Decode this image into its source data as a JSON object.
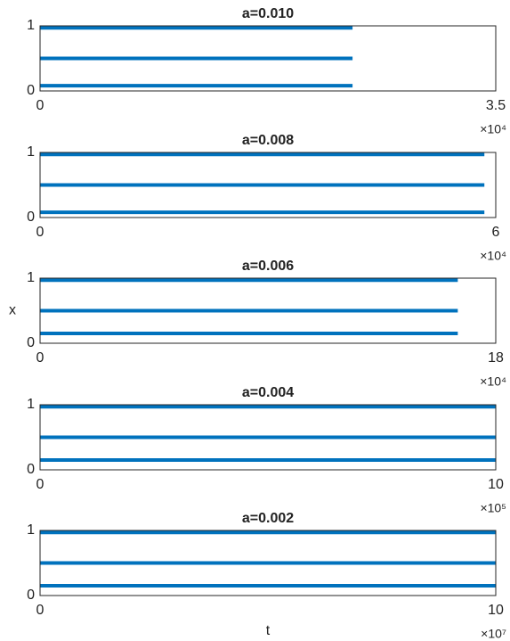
{
  "chart_data": [
    {
      "type": "line",
      "title": "a=0.010",
      "xlim": [
        0,
        3.5
      ],
      "xticks": [
        0,
        3.5
      ],
      "x_exponent": "×10⁴",
      "ylim": [
        0,
        1
      ],
      "yticks": [
        0,
        1
      ],
      "x": [
        0,
        0.6,
        1.2,
        1.8,
        2.4
      ],
      "series": [
        {
          "color": "#0072bd",
          "values": [
            0.97,
            0.97,
            0.97,
            0.97,
            0.97
          ]
        },
        {
          "color": "#0072bd",
          "values": [
            0.5,
            0.5,
            0.5,
            0.5,
            0.5
          ]
        },
        {
          "color": "#0072bd",
          "values": [
            0.08,
            0.08,
            0.08,
            0.08,
            0.08
          ]
        }
      ]
    },
    {
      "type": "line",
      "title": "a=0.008",
      "xlim": [
        0,
        6
      ],
      "xticks": [
        0,
        6
      ],
      "x_exponent": "×10⁴",
      "ylim": [
        0,
        1
      ],
      "yticks": [
        0,
        1
      ],
      "x": [
        0,
        1.5,
        3,
        4.5,
        5.85
      ],
      "series": [
        {
          "color": "#0072bd",
          "values": [
            0.97,
            0.97,
            0.97,
            0.97,
            0.97
          ]
        },
        {
          "color": "#0072bd",
          "values": [
            0.5,
            0.5,
            0.5,
            0.5,
            0.5
          ]
        },
        {
          "color": "#0072bd",
          "values": [
            0.08,
            0.08,
            0.08,
            0.08,
            0.08
          ]
        }
      ]
    },
    {
      "type": "line",
      "title": "a=0.006",
      "ylabel": "x",
      "xlim": [
        0,
        18
      ],
      "xticks": [
        0,
        18
      ],
      "x_exponent": "×10⁴",
      "ylim": [
        0,
        1
      ],
      "yticks": [
        0,
        1
      ],
      "x": [
        0,
        4,
        8,
        12,
        16.5
      ],
      "series": [
        {
          "color": "#0072bd",
          "values": [
            0.97,
            0.97,
            0.97,
            0.97,
            0.97
          ]
        },
        {
          "color": "#0072bd",
          "values": [
            0.5,
            0.5,
            0.5,
            0.5,
            0.5
          ]
        },
        {
          "color": "#0072bd",
          "values": [
            0.15,
            0.15,
            0.15,
            0.15,
            0.15
          ]
        }
      ]
    },
    {
      "type": "line",
      "title": "a=0.004",
      "xlim": [
        0,
        10
      ],
      "xticks": [
        0,
        10
      ],
      "x_exponent": "×10⁵",
      "ylim": [
        0,
        1
      ],
      "yticks": [
        0,
        1
      ],
      "x": [
        0,
        0.35,
        2.5,
        5,
        7.5,
        10
      ],
      "series": [
        {
          "color": "#0072bd",
          "values": [
            0.97,
            0.97,
            0.97,
            0.97,
            0.97,
            0.97
          ]
        },
        {
          "color": "#0072bd",
          "values": [
            0.5,
            0.5,
            0.5,
            0.5,
            0.5,
            0.5
          ]
        },
        {
          "color": "#0072bd",
          "values": [
            0.15,
            0.15,
            0.15,
            0.15,
            0.15,
            0.15
          ]
        }
      ]
    },
    {
      "type": "line",
      "title": "a=0.002",
      "xlabel": "t",
      "xlim": [
        0,
        10
      ],
      "xticks": [
        0,
        10
      ],
      "x_exponent": "×10⁷",
      "ylim": [
        0,
        1
      ],
      "yticks": [
        0,
        1
      ],
      "x": [
        0,
        2.5,
        5,
        7.5,
        10
      ],
      "series": [
        {
          "color": "#0072bd",
          "values": [
            0.97,
            0.97,
            0.97,
            0.97,
            0.97
          ]
        },
        {
          "color": "#0072bd",
          "values": [
            0.5,
            0.5,
            0.5,
            0.5,
            0.5
          ]
        },
        {
          "color": "#0072bd",
          "values": [
            0.15,
            0.15,
            0.15,
            0.15,
            0.15
          ]
        }
      ]
    }
  ]
}
